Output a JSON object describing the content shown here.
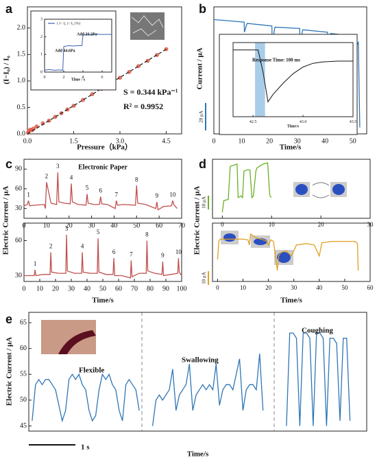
{
  "chart_data": [
    {
      "type": "scatter",
      "panel": "a",
      "xlabel": "Pressure（kPa）",
      "ylabel": "(I−I₀) / I₀",
      "xlim": [
        0,
        5
      ],
      "ylim": [
        0,
        2.4
      ],
      "xticks": [
        {
          "value": 0,
          "label": "0.0"
        },
        {
          "value": 1.5,
          "label": "1.5"
        },
        {
          "value": 3,
          "label": "3.0"
        },
        {
          "value": 4.5,
          "label": "4.5"
        }
      ],
      "yticks": [
        {
          "value": 0,
          "label": "0.0"
        },
        {
          "value": 0.5,
          "label": "0.5"
        },
        {
          "value": 1,
          "label": "1.0"
        },
        {
          "value": 1.5,
          "label": "1.5"
        },
        {
          "value": 2,
          "label": "2.0"
        }
      ],
      "annotations": [
        "S = 0.344 kPa⁻¹",
        "R² = 0.9952"
      ],
      "series": [
        {
          "color": "#e05a4a",
          "x": [
            0.02,
            0.05,
            0.1,
            0.15,
            0.2,
            0.3,
            0.5,
            0.7,
            0.9,
            1.1,
            1.3,
            1.5,
            1.8,
            2.1,
            2.4,
            2.7,
            3.0,
            3.3,
            3.6,
            3.9,
            4.2,
            4.5
          ],
          "values": [
            0.02,
            0.06,
            0.08,
            0.07,
            0.1,
            0.14,
            0.2,
            0.25,
            0.32,
            0.39,
            0.46,
            0.53,
            0.64,
            0.75,
            0.85,
            0.96,
            1.06,
            1.17,
            1.28,
            1.38,
            1.49,
            1.6
          ]
        },
        {
          "type": "line",
          "dash": true,
          "color": "#222222",
          "x": [
            0,
            4.5
          ],
          "values": [
            0,
            1.6
          ]
        }
      ]
    },
    {
      "type": "line",
      "xlabel": "Time / s",
      "xlim": [
        0,
        7
      ],
      "ylim": [
        0,
        3
      ],
      "xticks": [
        0,
        2,
        4,
        6
      ],
      "yticks": [
        0,
        1,
        2,
        3
      ],
      "annotations": [
        "Add 44.6Pa",
        "Add 22.2Pa"
      ],
      "series": [
        {
          "name": "( I - I₀ ) / I₀ (%)",
          "color": "#3a5fb0",
          "x": [
            0,
            0.5,
            1,
            1.5,
            1.9,
            2.0,
            2.5,
            3,
            3.5,
            3.9,
            4.0,
            4.5,
            5,
            5.5,
            6,
            6.5,
            7
          ],
          "values": [
            0.1,
            0.15,
            0.1,
            0.12,
            0.1,
            1.45,
            1.5,
            1.48,
            1.5,
            1.5,
            2.1,
            2.15,
            2.12,
            2.15,
            2.13,
            2.14,
            2.14
          ]
        }
      ]
    },
    {
      "type": "line",
      "panel": "b",
      "xlabel": "Time/s",
      "ylabel": "Current / μA",
      "scale_bar": "20 μA",
      "xlim": [
        0,
        55
      ],
      "ylim": [
        0,
        100
      ],
      "xticks": [
        0,
        10,
        20,
        30,
        40,
        50
      ],
      "series": [
        {
          "color": "#2e75b6",
          "x": [
            0,
            10.9,
            11,
            11.8,
            12,
            20.9,
            21,
            21.8,
            22,
            30.9,
            31,
            31.8,
            32,
            40.9,
            41,
            41.8,
            42,
            50.9,
            51,
            51.5,
            52,
            52.5
          ],
          "values": [
            90,
            88,
            80,
            86,
            87,
            85,
            70,
            82,
            84,
            83,
            65,
            80,
            82,
            80,
            60,
            78,
            79,
            77,
            40,
            70,
            72,
            5
          ]
        }
      ]
    },
    {
      "type": "line",
      "xlabel": "Time/s",
      "xlim": [
        42.3,
        43.5
      ],
      "ylim": [
        0,
        100
      ],
      "xticks": [
        42.5,
        {
          "value": 43,
          "label": "43.0"
        },
        43.5
      ],
      "annotations": [
        "Response Time:  100 ms"
      ],
      "highlight": [
        42.52,
        42.62
      ],
      "series": [
        {
          "color": "#111111",
          "x": [
            42.3,
            42.55,
            42.6,
            42.65,
            42.7,
            42.8,
            42.9,
            43.0,
            43.1,
            43.2,
            43.35,
            43.5
          ],
          "values": [
            90,
            90,
            60,
            20,
            30,
            45,
            58,
            67,
            72,
            74,
            75,
            75
          ]
        }
      ]
    },
    {
      "type": "line",
      "panel": "c",
      "title": "Electronic Paper",
      "ylabel": "Electric Current / μA",
      "xlim": [
        0,
        70
      ],
      "ylim": [
        15,
        105
      ],
      "xticks": [
        0,
        10,
        20,
        30,
        40,
        50,
        60,
        70
      ],
      "yticks": [
        30,
        60,
        90
      ],
      "peak_labels": [
        "1",
        "2",
        "3",
        "4",
        "5",
        "6",
        "7",
        "8",
        "9",
        "10"
      ],
      "series": [
        {
          "color": "#c0504d",
          "x": [
            0,
            1.5,
            2,
            2.5,
            5,
            9,
            9.5,
            10,
            12,
            14.5,
            15,
            15.5,
            18,
            20.5,
            21,
            21.5,
            24,
            27.5,
            28,
            28.5,
            31,
            33.5,
            34,
            34.5,
            37,
            40.5,
            41,
            41.5,
            44,
            49.5,
            50,
            50.5,
            54,
            58.5,
            59,
            59.5,
            62,
            65.5,
            66,
            66.5,
            68
          ],
          "values": [
            34,
            36,
            42,
            34,
            35,
            36,
            30,
            70,
            38,
            36,
            85,
            40,
            38,
            37,
            68,
            40,
            36,
            35,
            52,
            38,
            36,
            36,
            48,
            37,
            36,
            30,
            42,
            35,
            36,
            35,
            65,
            38,
            36,
            30,
            40,
            28,
            33,
            34,
            42,
            36,
            30
          ]
        }
      ]
    },
    {
      "type": "line",
      "xlabel": "Time/s",
      "xlim": [
        0,
        100
      ],
      "ylim": [
        25,
        75
      ],
      "xticks": [
        0,
        10,
        20,
        30,
        40,
        50,
        60,
        70,
        80,
        90,
        100
      ],
      "yticks": [
        30,
        60
      ],
      "peak_labels": [
        "1",
        "2",
        "3",
        "4",
        "5",
        "6",
        "7",
        "8",
        "9",
        "10"
      ],
      "series": [
        {
          "color": "#c0504d",
          "x": [
            0,
            6.5,
            7,
            7.5,
            12,
            16.5,
            17,
            17.5,
            22,
            26.5,
            27,
            27.5,
            32,
            36.5,
            37,
            37.5,
            42,
            46.5,
            47,
            47.5,
            52,
            56.5,
            57,
            57.5,
            62,
            67.5,
            68,
            68.5,
            73,
            77.5,
            78,
            78.5,
            83,
            87.5,
            88,
            88.5,
            93,
            97.5,
            98,
            98.5,
            100
          ],
          "values": [
            30,
            30,
            35,
            30,
            31,
            31,
            50,
            33,
            32,
            32,
            65,
            34,
            32,
            32,
            50,
            33,
            32,
            32,
            62,
            33,
            31,
            31,
            45,
            30,
            30,
            28,
            43,
            29,
            32,
            32,
            60,
            34,
            32,
            31,
            42,
            30,
            31,
            32,
            45,
            33,
            30
          ]
        }
      ]
    },
    {
      "type": "line",
      "panel": "d",
      "ylabel": "Electric Current / μA",
      "scale_bar": "10 μA",
      "xlim": [
        -2,
        30
      ],
      "ylim": [
        0,
        100
      ],
      "xticks": [
        0,
        10,
        20,
        30
      ],
      "series": [
        {
          "color": "#6ab023",
          "x": [
            0,
            0.3,
            1.2,
            1.6,
            2.3,
            3.0,
            3.2,
            3.8,
            4.1,
            4.4,
            5.0,
            5.6,
            6.0,
            6.3,
            6.8,
            7.0,
            7.5,
            8.3,
            9.2,
            9.6,
            9.9
          ],
          "values": [
            10,
            30,
            32,
            88,
            90,
            92,
            35,
            38,
            35,
            80,
            82,
            82,
            35,
            38,
            80,
            85,
            88,
            92,
            94,
            40,
            35
          ]
        }
      ]
    },
    {
      "type": "line",
      "xlabel": "Time/s",
      "scale_bar": "10 μA",
      "xlim": [
        -2,
        60
      ],
      "ylim": [
        0,
        80
      ],
      "xticks": [
        0,
        10,
        20,
        30,
        40,
        50,
        60
      ],
      "series": [
        {
          "color": "#e0a020",
          "x": [
            0,
            0.5,
            1,
            10,
            12,
            12.5,
            13,
            15,
            17,
            19,
            20,
            21,
            22,
            23,
            23.5,
            24,
            25,
            27,
            29,
            30,
            31,
            35,
            38,
            40,
            41,
            45,
            50,
            54,
            55,
            55.3
          ],
          "values": [
            30,
            55,
            58,
            58,
            57,
            50,
            65,
            60,
            58,
            56,
            50,
            57,
            55,
            30,
            15,
            35,
            40,
            42,
            35,
            42,
            50,
            52,
            50,
            35,
            53,
            55,
            55,
            55,
            52,
            15
          ]
        }
      ]
    },
    {
      "type": "line",
      "panel": "e",
      "xlabel": "Time/s",
      "ylabel": "Electric Current / μA",
      "scale_bar": "1 s",
      "xlim": [
        -1,
        100
      ],
      "ylim": [
        44,
        67
      ],
      "yticks": [
        45,
        50,
        55,
        60,
        65
      ],
      "annotations": [
        "Flexible",
        "Swallowing",
        "Coughing"
      ],
      "series": [
        {
          "color": "#2e75b6",
          "x": [
            0,
            1,
            2,
            3,
            4,
            5,
            6,
            7,
            8,
            9,
            10,
            11,
            12,
            13,
            14,
            15,
            16,
            17,
            18,
            19,
            20,
            21,
            22,
            23,
            24,
            25,
            26,
            27,
            28,
            29,
            30,
            31,
            32,
            34,
            36,
            37,
            38,
            39,
            40,
            41,
            42,
            43,
            44,
            45,
            46,
            47,
            48,
            49,
            50,
            51,
            52,
            53,
            54,
            55,
            56,
            57,
            58,
            59,
            60,
            61,
            62,
            63,
            64,
            65,
            66,
            67,
            68,
            69,
            73,
            76,
            77,
            78,
            79,
            80,
            81,
            82,
            83,
            84,
            85,
            86,
            87,
            88,
            89,
            90,
            91,
            92,
            93,
            94,
            95
          ],
          "values": [
            46,
            53,
            54,
            53,
            54,
            54,
            53,
            52,
            49,
            46,
            48,
            54,
            55,
            54,
            55,
            53,
            52,
            48,
            46,
            47,
            52,
            55,
            54,
            55,
            53,
            52,
            48,
            46,
            53,
            54,
            53,
            52,
            48,
            null,
            45,
            50,
            51,
            50,
            51,
            52,
            56,
            48,
            51,
            52,
            53,
            57,
            48,
            51,
            52,
            53,
            52,
            53,
            52,
            57,
            49,
            52,
            53,
            53,
            52,
            55,
            58,
            48,
            52,
            53,
            53,
            52,
            59,
            48,
            null,
            45,
            63,
            63,
            62,
            45,
            63,
            63,
            62,
            45,
            63,
            63,
            62,
            45,
            62,
            62,
            61,
            46,
            62,
            62,
            46
          ]
        }
      ]
    }
  ]
}
